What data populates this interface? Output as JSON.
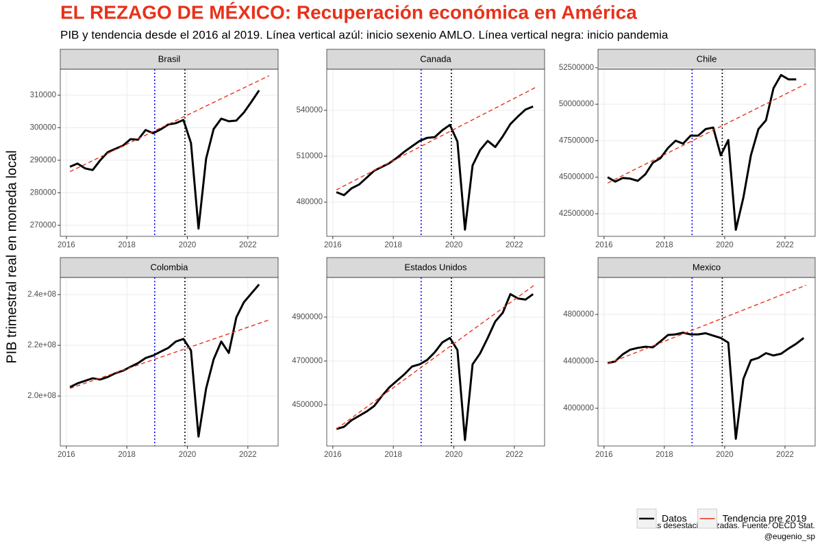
{
  "title": "EL REZAGO DE MÉXICO: Recuperación económica en América",
  "subtitle": "PIB y tendencia desde el 2016 al 2019. Línea vertical azúl: inicio sexenio AMLO. Línea vertical negra: inicio pandemia",
  "ylabel": "PIB trimestral real en moneda local",
  "caption": [
    "Cifras desestacionalizadas. Fuente: OECD Stat.",
    "@eugenio_sp"
  ],
  "chart_data": [
    {
      "type": "line",
      "title": "Brasil",
      "xlim": [
        2015.8,
        2023.0
      ],
      "xticks": [
        2016,
        2018,
        2020,
        2022
      ],
      "ylim": [
        266600,
        318000
      ],
      "yticks": [
        270000,
        280000,
        290000,
        300000,
        310000
      ],
      "grid": true,
      "vlines": [
        {
          "x": 2018.92,
          "color": "blue"
        },
        {
          "x": 2019.92,
          "color": "black"
        }
      ],
      "series": [
        {
          "name": "Datos",
          "color": "#000000",
          "x": [
            2016.12,
            2016.37,
            2016.62,
            2016.87,
            2017.12,
            2017.37,
            2017.62,
            2017.87,
            2018.12,
            2018.37,
            2018.62,
            2018.87,
            2019.12,
            2019.37,
            2019.62,
            2019.87,
            2020.12,
            2020.37,
            2020.62,
            2020.87,
            2021.12,
            2021.37,
            2021.62,
            2021.87,
            2022.12,
            2022.37
          ],
          "values": [
            288000,
            289000,
            287500,
            287000,
            290000,
            292500,
            293500,
            294500,
            296500,
            296300,
            299300,
            298300,
            299500,
            301000,
            301400,
            302400,
            295300,
            269000,
            290500,
            299600,
            302800,
            302000,
            302200,
            304700,
            308000,
            311500
          ]
        },
        {
          "name": "Tendencia pre 2019",
          "color": "#e8311a",
          "x": [
            2016.12,
            2022.7
          ],
          "values": [
            286500,
            316000
          ]
        }
      ]
    },
    {
      "type": "line",
      "title": "Canada",
      "xlim": [
        2015.8,
        2023.0
      ],
      "xticks": [
        2016,
        2018,
        2020,
        2022
      ],
      "ylim": [
        457600,
        566900
      ],
      "yticks": [
        480000,
        510000,
        540000
      ],
      "grid": true,
      "vlines": [
        {
          "x": 2018.92,
          "color": "blue"
        },
        {
          "x": 2019.92,
          "color": "black"
        }
      ],
      "series": [
        {
          "name": "Datos",
          "color": "#000000",
          "x": [
            2016.12,
            2016.37,
            2016.62,
            2016.87,
            2017.12,
            2017.37,
            2017.62,
            2017.87,
            2018.12,
            2018.37,
            2018.62,
            2018.87,
            2019.12,
            2019.37,
            2019.62,
            2019.87,
            2020.12,
            2020.37,
            2020.62,
            2020.87,
            2021.12,
            2021.37,
            2021.62,
            2021.87,
            2022.12,
            2022.37,
            2022.62
          ],
          "values": [
            486500,
            484500,
            489000,
            491500,
            496000,
            500500,
            503000,
            505500,
            509000,
            513000,
            516500,
            520000,
            522000,
            522500,
            527000,
            530500,
            519500,
            462000,
            504000,
            514000,
            520000,
            516000,
            523000,
            531000,
            536000,
            540500,
            542500
          ]
        },
        {
          "name": "Tendencia pre 2019",
          "color": "#e8311a",
          "x": [
            2016.12,
            2022.7
          ],
          "values": [
            488000,
            555000
          ]
        }
      ]
    },
    {
      "type": "line",
      "title": "Chile",
      "xlim": [
        2015.8,
        2023.0
      ],
      "xticks": [
        2016,
        2018,
        2020,
        2022
      ],
      "ylim": [
        40950000,
        52400000
      ],
      "yticks": [
        42500000,
        45000000,
        47500000,
        50000000,
        52500000
      ],
      "grid": true,
      "vlines": [
        {
          "x": 2018.92,
          "color": "blue"
        },
        {
          "x": 2019.92,
          "color": "black"
        }
      ],
      "series": [
        {
          "name": "Datos",
          "color": "#000000",
          "x": [
            2016.12,
            2016.37,
            2016.62,
            2016.87,
            2017.12,
            2017.37,
            2017.62,
            2017.87,
            2018.12,
            2018.37,
            2018.62,
            2018.87,
            2019.12,
            2019.37,
            2019.62,
            2019.87,
            2020.12,
            2020.37,
            2020.62,
            2020.87,
            2021.12,
            2021.37,
            2021.62,
            2021.87,
            2022.12,
            2022.37
          ],
          "values": [
            45000000,
            44700000,
            44950000,
            44900000,
            44750000,
            45200000,
            46000000,
            46300000,
            47000000,
            47500000,
            47300000,
            47850000,
            47850000,
            48300000,
            48400000,
            46500000,
            47550000,
            41400000,
            43600000,
            46500000,
            48300000,
            48900000,
            51100000,
            52000000,
            51700000,
            51700000
          ]
        },
        {
          "name": "Tendencia pre 2019",
          "color": "#e8311a",
          "x": [
            2016.12,
            2022.7
          ],
          "values": [
            44600000,
            51400000
          ]
        }
      ]
    },
    {
      "type": "line",
      "title": "Colombia",
      "xlim": [
        2015.8,
        2023.0
      ],
      "xticks": [
        2016,
        2018,
        2020,
        2022
      ],
      "ylim": [
        180300000,
        246760000
      ],
      "yticks": [
        {
          "value": 200000000,
          "label": "2.0e+08"
        },
        {
          "value": 220000000,
          "label": "2.2e+08"
        },
        {
          "value": 240000000,
          "label": "2.4e+08"
        }
      ],
      "grid": true,
      "vlines": [
        {
          "x": 2018.92,
          "color": "blue"
        },
        {
          "x": 2019.92,
          "color": "black"
        }
      ],
      "series": [
        {
          "name": "Datos",
          "color": "#000000",
          "x": [
            2016.12,
            2016.37,
            2016.62,
            2016.87,
            2017.12,
            2017.37,
            2017.62,
            2017.87,
            2018.12,
            2018.37,
            2018.62,
            2018.87,
            2019.12,
            2019.37,
            2019.62,
            2019.87,
            2020.12,
            2020.37,
            2020.62,
            2020.87,
            2021.12,
            2021.37,
            2021.62,
            2021.87,
            2022.12,
            2022.37
          ],
          "values": [
            203500000,
            205000000,
            206000000,
            207000000,
            206500000,
            207500000,
            209000000,
            210000000,
            211500000,
            213000000,
            215000000,
            216000000,
            217500000,
            219000000,
            221500000,
            222500000,
            218000000,
            184000000,
            203000000,
            214500000,
            221500000,
            217000000,
            231000000,
            237000000,
            240500000,
            244000000
          ]
        },
        {
          "name": "Tendencia pre 2019",
          "color": "#e8311a",
          "x": [
            2016.12,
            2022.7
          ],
          "values": [
            203000000,
            230000000
          ]
        }
      ]
    },
    {
      "type": "line",
      "title": "Estados Unidos",
      "xlim": [
        2015.8,
        2023.0
      ],
      "xticks": [
        2016,
        2018,
        2020,
        2022
      ],
      "ylim": [
        4312500,
        5081000
      ],
      "yticks": [
        4500000,
        4700000,
        4900000
      ],
      "grid": true,
      "vlines": [
        {
          "x": 2018.92,
          "color": "blue"
        },
        {
          "x": 2019.92,
          "color": "black"
        }
      ],
      "series": [
        {
          "name": "Datos",
          "color": "#000000",
          "x": [
            2016.12,
            2016.37,
            2016.62,
            2016.87,
            2017.12,
            2017.37,
            2017.62,
            2017.87,
            2018.12,
            2018.37,
            2018.62,
            2018.87,
            2019.12,
            2019.37,
            2019.62,
            2019.87,
            2020.12,
            2020.37,
            2020.62,
            2020.87,
            2021.12,
            2021.37,
            2021.62,
            2021.87,
            2022.12,
            2022.37,
            2022.62
          ],
          "values": [
            4390000,
            4400000,
            4430000,
            4450000,
            4470000,
            4495000,
            4540000,
            4580000,
            4610000,
            4640000,
            4675000,
            4685000,
            4705000,
            4740000,
            4785000,
            4805000,
            4750000,
            4340000,
            4685000,
            4735000,
            4805000,
            4880000,
            4920000,
            5005000,
            4985000,
            4980000,
            5005000
          ]
        },
        {
          "name": "Tendencia pre 2019",
          "color": "#e8311a",
          "x": [
            2016.12,
            2022.7
          ],
          "values": [
            4390000,
            5050000
          ]
        }
      ]
    },
    {
      "type": "line",
      "title": "Mexico",
      "xlim": [
        2015.8,
        2023.0
      ],
      "xticks": [
        2016,
        2018,
        2020,
        2022
      ],
      "ylim": [
        3678400,
        5115800
      ],
      "yticks": [
        4000000,
        4400000,
        4800000
      ],
      "grid": true,
      "vlines": [
        {
          "x": 2018.92,
          "color": "blue"
        },
        {
          "x": 2019.92,
          "color": "black"
        }
      ],
      "series": [
        {
          "name": "Datos",
          "color": "#000000",
          "x": [
            2016.12,
            2016.37,
            2016.62,
            2016.87,
            2017.12,
            2017.37,
            2017.62,
            2017.87,
            2018.12,
            2018.37,
            2018.62,
            2018.87,
            2019.12,
            2019.37,
            2019.62,
            2019.87,
            2020.12,
            2020.37,
            2020.62,
            2020.87,
            2021.12,
            2021.37,
            2021.62,
            2021.87,
            2022.12,
            2022.37,
            2022.62
          ],
          "values": [
            4385000,
            4400000,
            4460000,
            4500000,
            4515000,
            4525000,
            4520000,
            4570000,
            4625000,
            4630000,
            4645000,
            4630000,
            4630000,
            4640000,
            4620000,
            4600000,
            4560000,
            3740000,
            4250000,
            4410000,
            4430000,
            4470000,
            4450000,
            4465000,
            4510000,
            4550000,
            4600000
          ]
        },
        {
          "name": "Tendencia pre 2019",
          "color": "#e8311a",
          "x": [
            2016.12,
            2022.7
          ],
          "values": [
            4380000,
            5050000
          ]
        }
      ]
    }
  ]
}
